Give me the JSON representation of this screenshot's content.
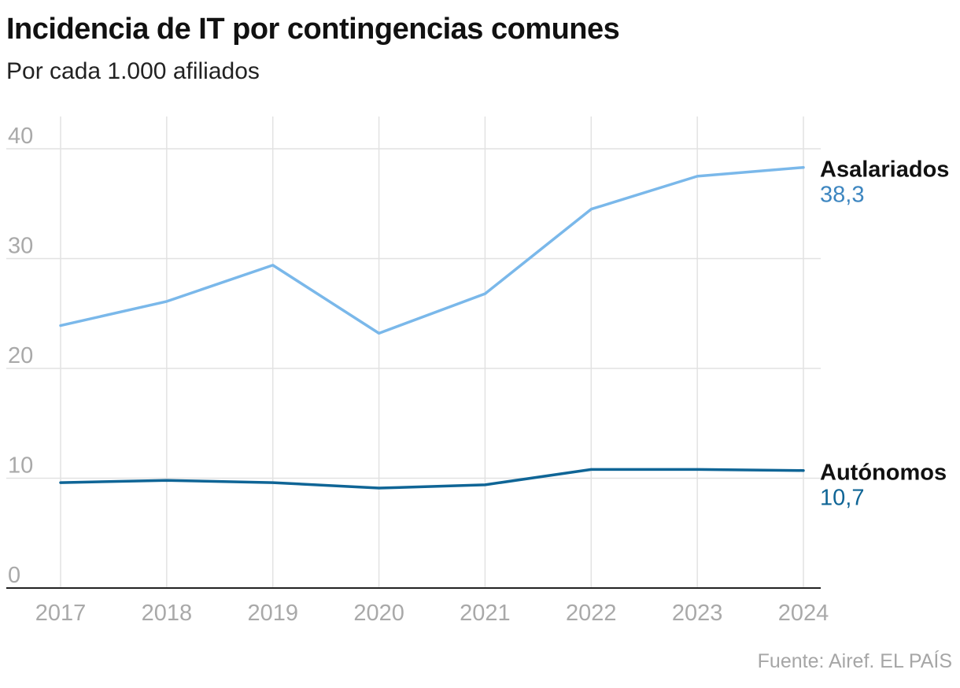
{
  "header": {
    "title": "Incidencia de IT por contingencias comunes",
    "subtitle": "Por cada 1.000 afiliados"
  },
  "footer": {
    "source": "Fuente: Airef. EL PAÍS"
  },
  "chart_data": {
    "type": "line",
    "title": "Incidencia de IT por contingencias comunes",
    "subtitle": "Por cada 1.000 afiliados",
    "xlabel": "",
    "ylabel": "",
    "categories": [
      "2017",
      "2018",
      "2019",
      "2020",
      "2021",
      "2022",
      "2023",
      "2024"
    ],
    "ylim": [
      0,
      40
    ],
    "yticks": [
      0,
      10,
      20,
      30,
      40
    ],
    "grid": true,
    "legend": "direct labels at right end of lines",
    "series": [
      {
        "name": "Asalariados",
        "end_label": "38,3",
        "color": "#7ab8ea",
        "label_color": "#3d86c0",
        "values": [
          23.9,
          26.1,
          29.4,
          23.2,
          26.8,
          34.5,
          37.5,
          38.3
        ]
      },
      {
        "name": "Autónomos",
        "end_label": "10,7",
        "color": "#0f6596",
        "label_color": "#0f6596",
        "values": [
          9.6,
          9.8,
          9.6,
          9.1,
          9.4,
          10.8,
          10.8,
          10.7
        ]
      }
    ],
    "source": "Fuente: Airef. EL PAÍS"
  }
}
